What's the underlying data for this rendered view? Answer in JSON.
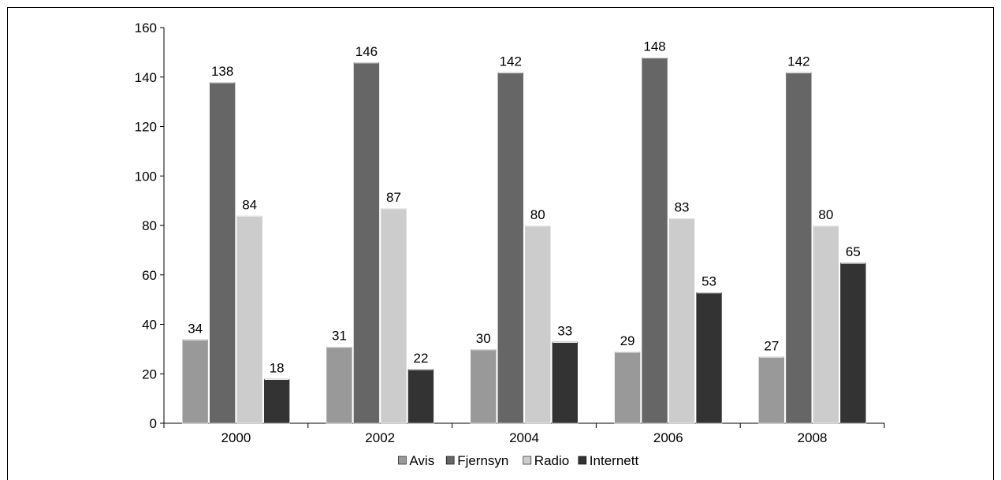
{
  "chart_data": {
    "type": "bar",
    "title": "",
    "xlabel": "",
    "ylabel": "",
    "categories": [
      "2000",
      "2002",
      "2004",
      "2006",
      "2008"
    ],
    "series": [
      {
        "name": "Avis",
        "color": "#999999",
        "values": [
          34,
          31,
          30,
          29,
          27
        ]
      },
      {
        "name": "Fjernsyn",
        "color": "#666666",
        "values": [
          138,
          146,
          142,
          148,
          142
        ]
      },
      {
        "name": "Radio",
        "color": "#cccccc",
        "values": [
          84,
          87,
          80,
          83,
          80
        ]
      },
      {
        "name": "Internett",
        "color": "#333333",
        "values": [
          18,
          22,
          33,
          53,
          65
        ]
      }
    ],
    "ylim": [
      0,
      160
    ],
    "yticks": [
      0,
      20,
      40,
      60,
      80,
      100,
      120,
      140,
      160
    ],
    "grid": false,
    "data_labels": true,
    "legend_position": "bottom"
  }
}
